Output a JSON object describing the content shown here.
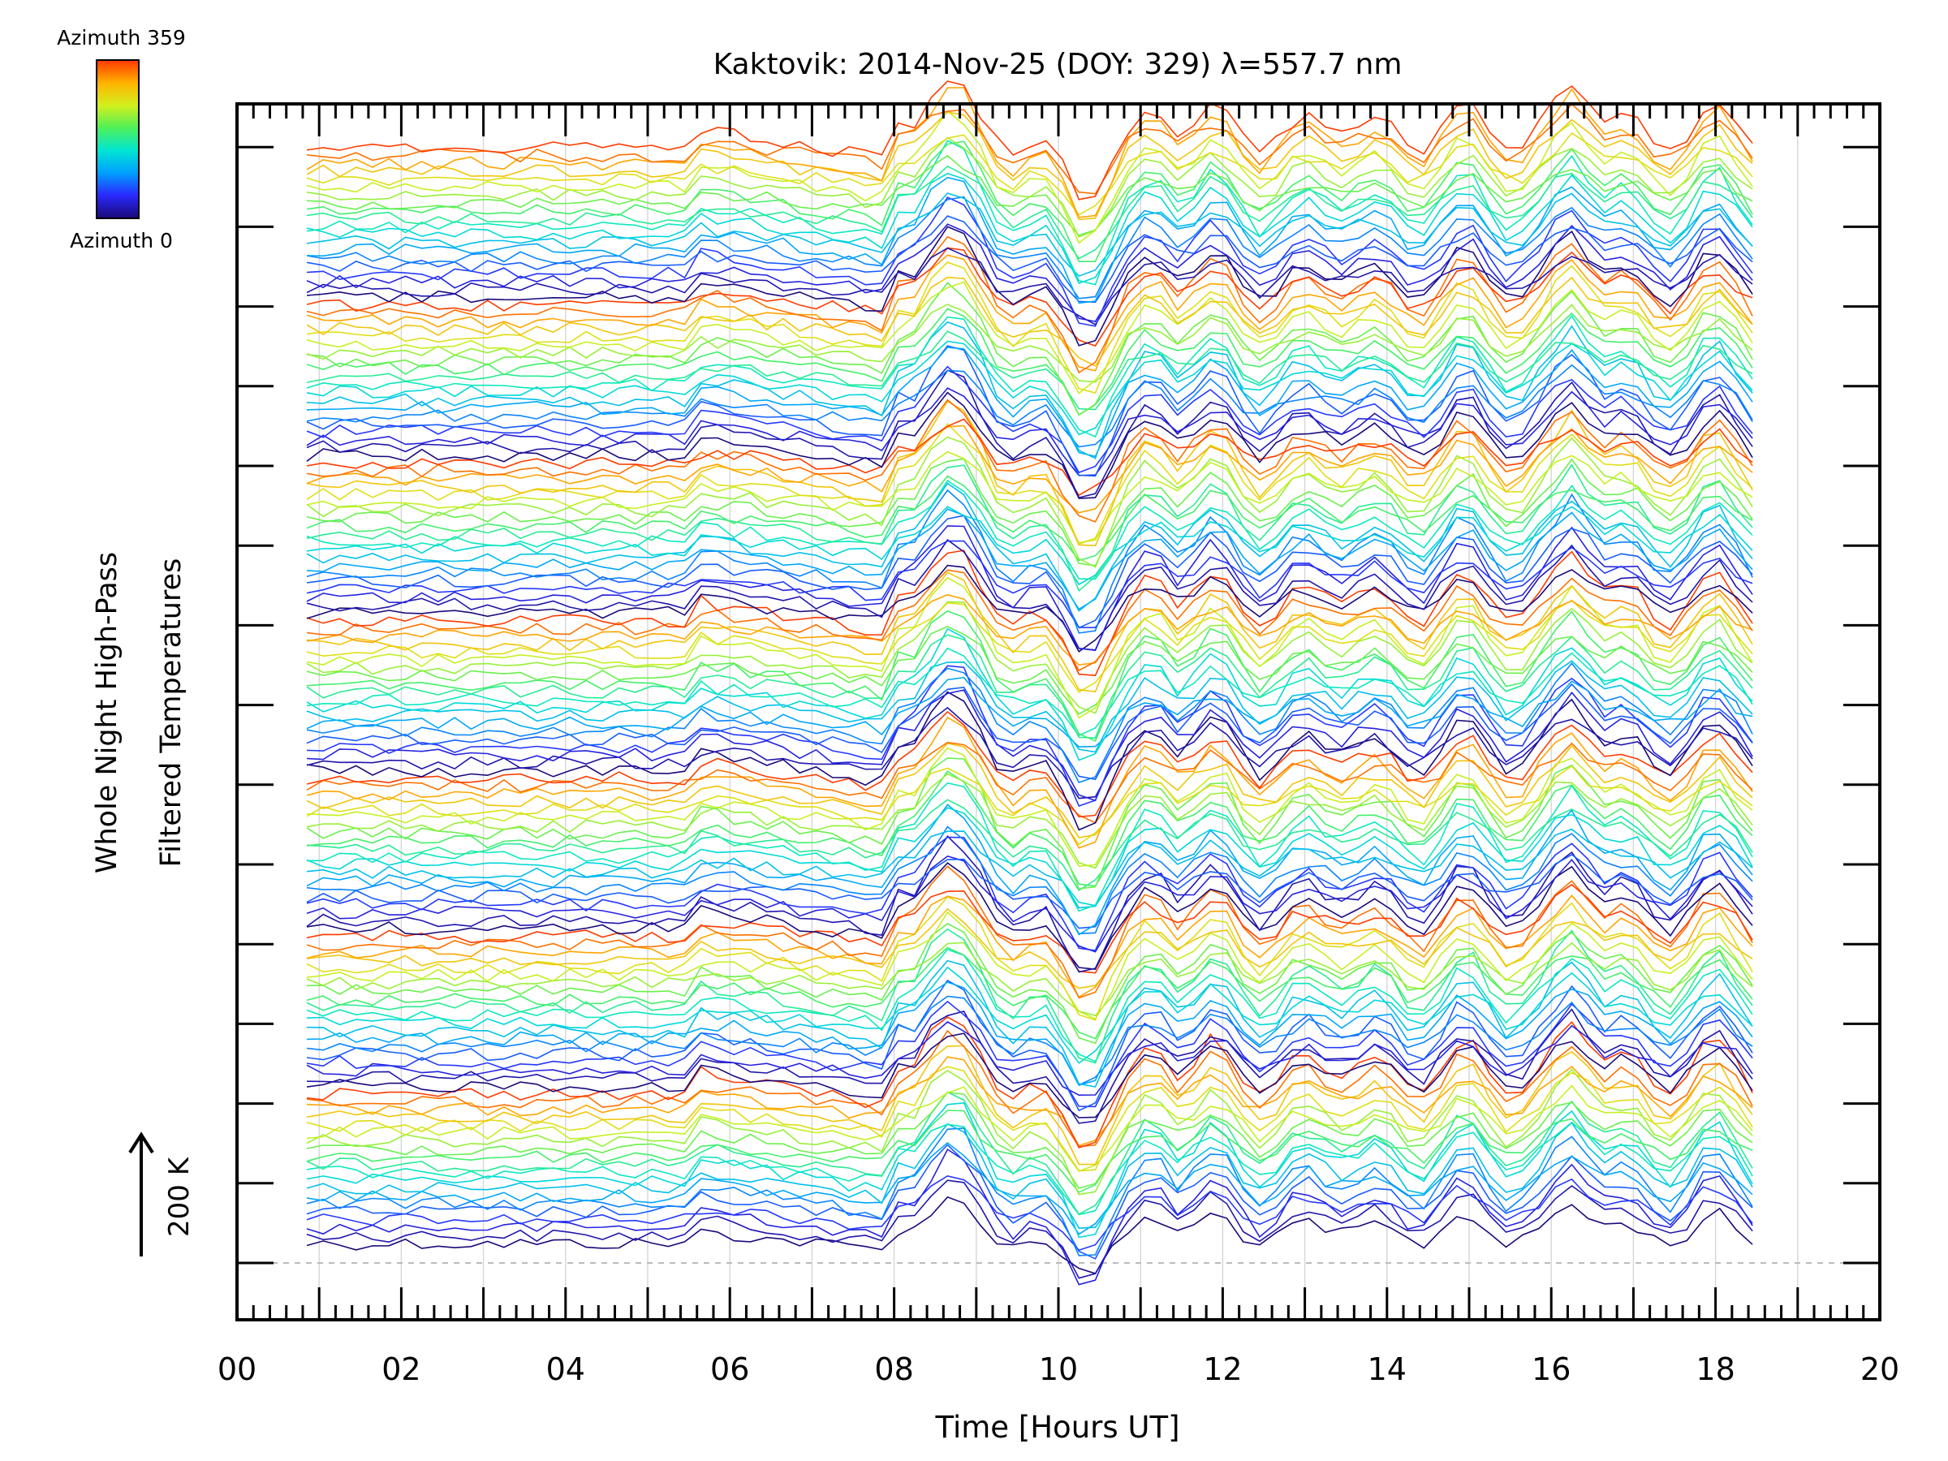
{
  "chart_data": {
    "type": "line",
    "title": "Kaktovik: 2014-Nov-25 (DOY: 329) λ=557.7 nm",
    "xlabel": "Time [Hours UT]",
    "ylabel_line1": "Whole Night High-Pass",
    "ylabel_line2": "Filtered Temperatures",
    "xlim": [
      0,
      20
    ],
    "x_ticks": [
      "00",
      "02",
      "04",
      "06",
      "08",
      "10",
      "12",
      "14",
      "16",
      "18",
      "20"
    ],
    "data_time_range": [
      0.85,
      18.5
    ],
    "scale_bar": {
      "label": "200 K",
      "value_K": 200
    },
    "colorbar": {
      "min_label": "Azimuth 0",
      "max_label": "Azimuth 359",
      "colors": [
        "#1a0a7a",
        "#2a2aff",
        "#00a0ff",
        "#00e6d2",
        "#4ef05a",
        "#d2f01e",
        "#ffb400",
        "#ff3c00"
      ]
    },
    "series": [
      {
        "name": "stacked azimuth profiles",
        "count": 140,
        "azimuth_range": [
          0,
          359
        ],
        "offset_groups": 7,
        "features": [
          {
            "time": 5.5,
            "description": "step increase"
          },
          {
            "time": 8.5,
            "description": "wave onset"
          },
          {
            "time": 10.3,
            "description": "deep minimum"
          },
          {
            "time": 11.2,
            "description": "peak"
          },
          {
            "time": 16.3,
            "description": "peak"
          }
        ]
      }
    ]
  }
}
